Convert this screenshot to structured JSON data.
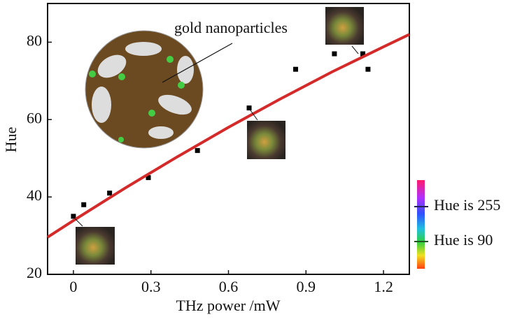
{
  "chart_data": {
    "type": "scatter",
    "x_label": "THz power /mW",
    "y_label": "Hue",
    "x": [
      0.0,
      0.04,
      0.14,
      0.29,
      0.48,
      0.68,
      0.86,
      1.01,
      1.12,
      1.14
    ],
    "values": [
      35,
      38,
      41,
      45,
      52,
      63,
      73,
      77,
      77,
      73
    ],
    "color": "#000000",
    "fit": {
      "color": "#d42a2a",
      "x": [
        -0.1,
        0,
        0.2,
        0.4,
        0.6,
        0.8,
        1.0,
        1.2,
        1.3
      ],
      "values": [
        29.6,
        33.9,
        42.3,
        50.3,
        58.0,
        65.3,
        72.3,
        78.8,
        82.0
      ]
    },
    "xlim": [
      -0.1,
      1.3
    ],
    "xticks": [
      0,
      0.3,
      0.6,
      0.9,
      1.2
    ],
    "ylim": [
      20,
      90
    ],
    "yticks": [
      20,
      40,
      60,
      80
    ],
    "annotations": [
      "gold nanoparticles",
      "Hue is 255",
      "Hue is 90"
    ]
  }
}
